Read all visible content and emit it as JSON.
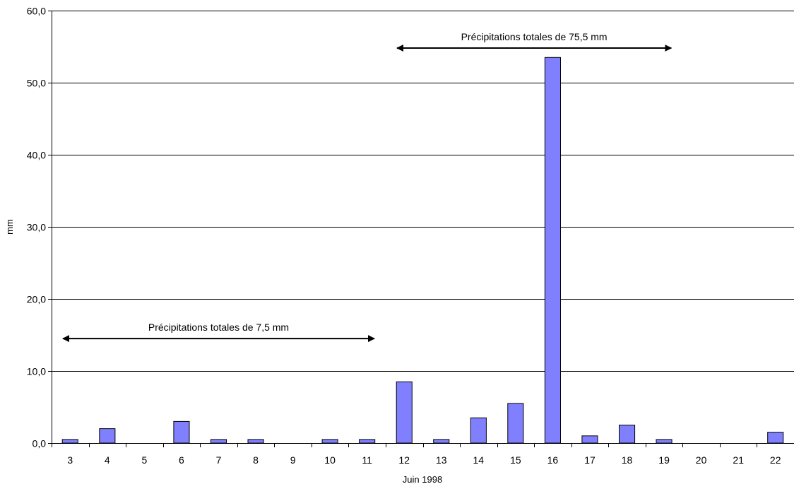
{
  "chart_data": {
    "type": "bar",
    "categories": [
      "3",
      "4",
      "5",
      "6",
      "7",
      "8",
      "9",
      "10",
      "11",
      "12",
      "13",
      "14",
      "15",
      "16",
      "17",
      "18",
      "19",
      "20",
      "21",
      "22"
    ],
    "values": [
      0.5,
      2.0,
      0,
      3.0,
      0.5,
      0.5,
      0,
      0.5,
      0.5,
      8.5,
      0.5,
      3.5,
      5.5,
      53.5,
      1.0,
      2.5,
      0.5,
      0,
      0,
      1.5
    ],
    "xlabel": "Juin 1998",
    "ylabel": "mm",
    "ylim": [
      0,
      60
    ],
    "yticks": [
      "0,0",
      "10,0",
      "20,0",
      "30,0",
      "40,0",
      "50,0",
      "60,0"
    ],
    "grid": "horizontal",
    "bar_color": "#8080FF",
    "annotations": [
      {
        "text": "Précipitations totales de 7,5 mm",
        "from": "3",
        "to": "11",
        "y": 14.5
      },
      {
        "text": "Précipitations totales de 75,5 mm",
        "from": "12",
        "to": "19",
        "y": 54.8
      }
    ]
  }
}
